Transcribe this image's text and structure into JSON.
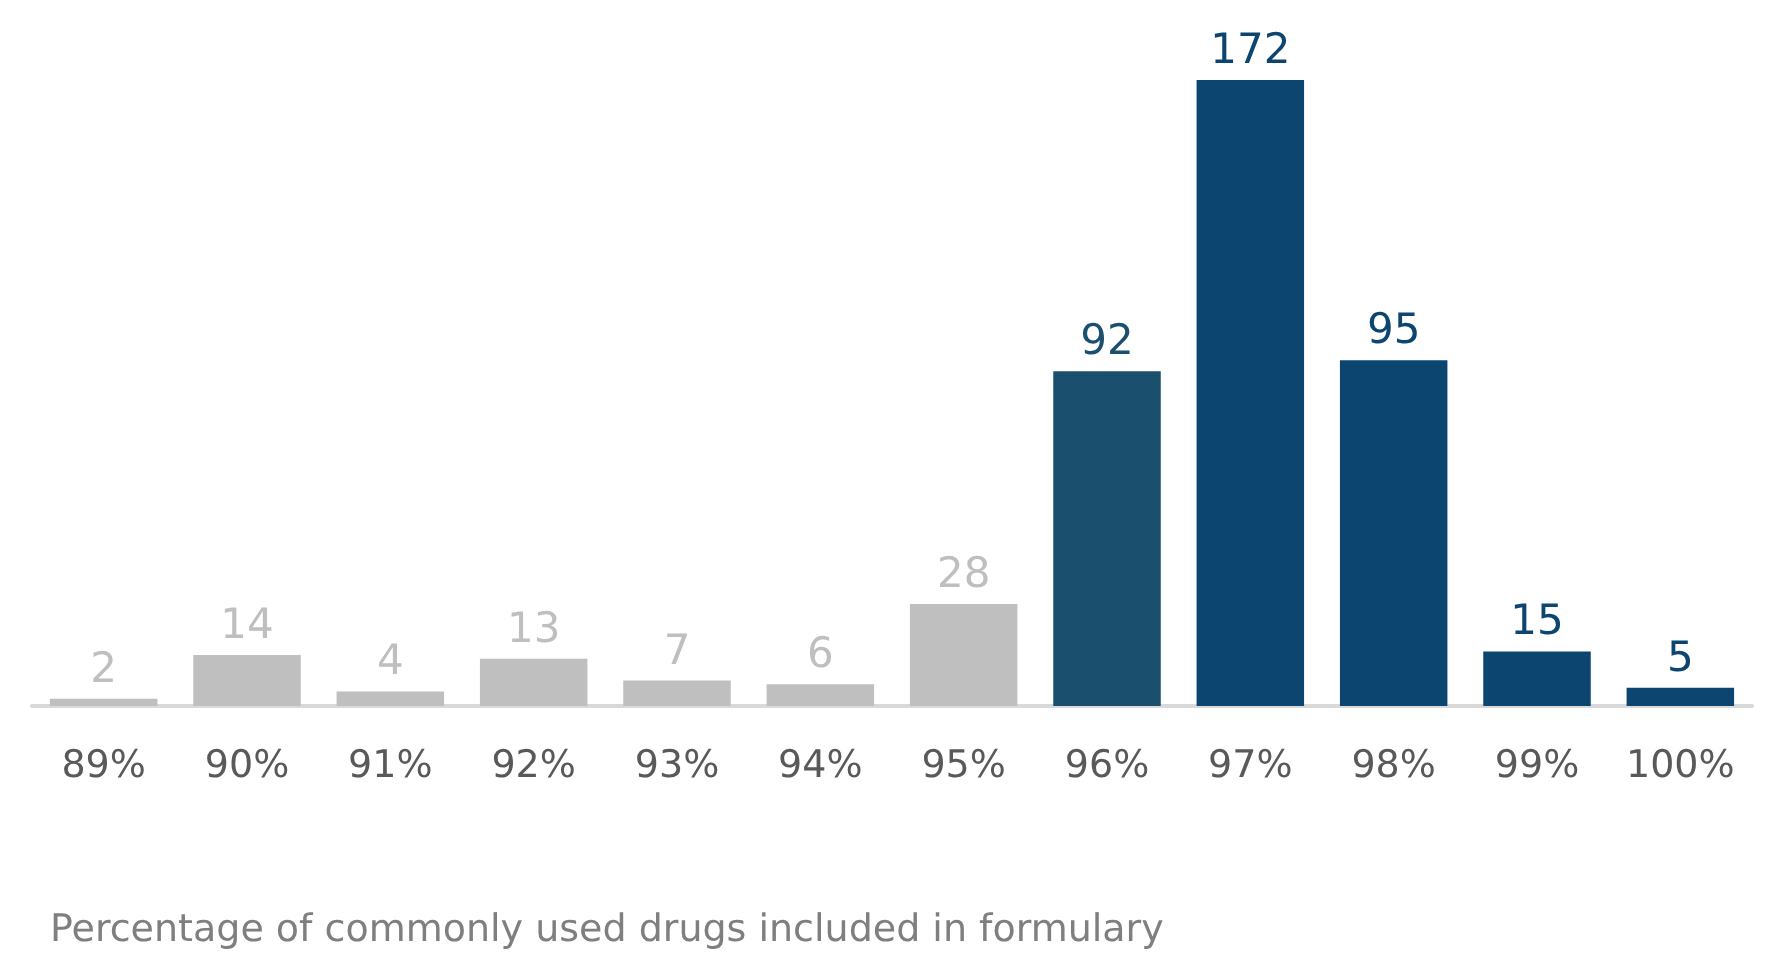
{
  "chart_data": {
    "type": "bar",
    "xlabel": "Percentage of commonly used drugs included in formulary",
    "categories": [
      "89%",
      "90%",
      "91%",
      "92%",
      "93%",
      "94%",
      "95%",
      "96%",
      "97%",
      "98%",
      "99%",
      "100%"
    ],
    "values": [
      2,
      14,
      4,
      13,
      7,
      6,
      28,
      92,
      172,
      95,
      15,
      5
    ],
    "colors": [
      "#bfbfbf",
      "#bfbfbf",
      "#bfbfbf",
      "#bfbfbf",
      "#bfbfbf",
      "#bfbfbf",
      "#bfbfbf",
      "#1b4f6e",
      "#0c4670",
      "#0c4670",
      "#0c4670",
      "#0c4670"
    ],
    "data_labels": true
  }
}
